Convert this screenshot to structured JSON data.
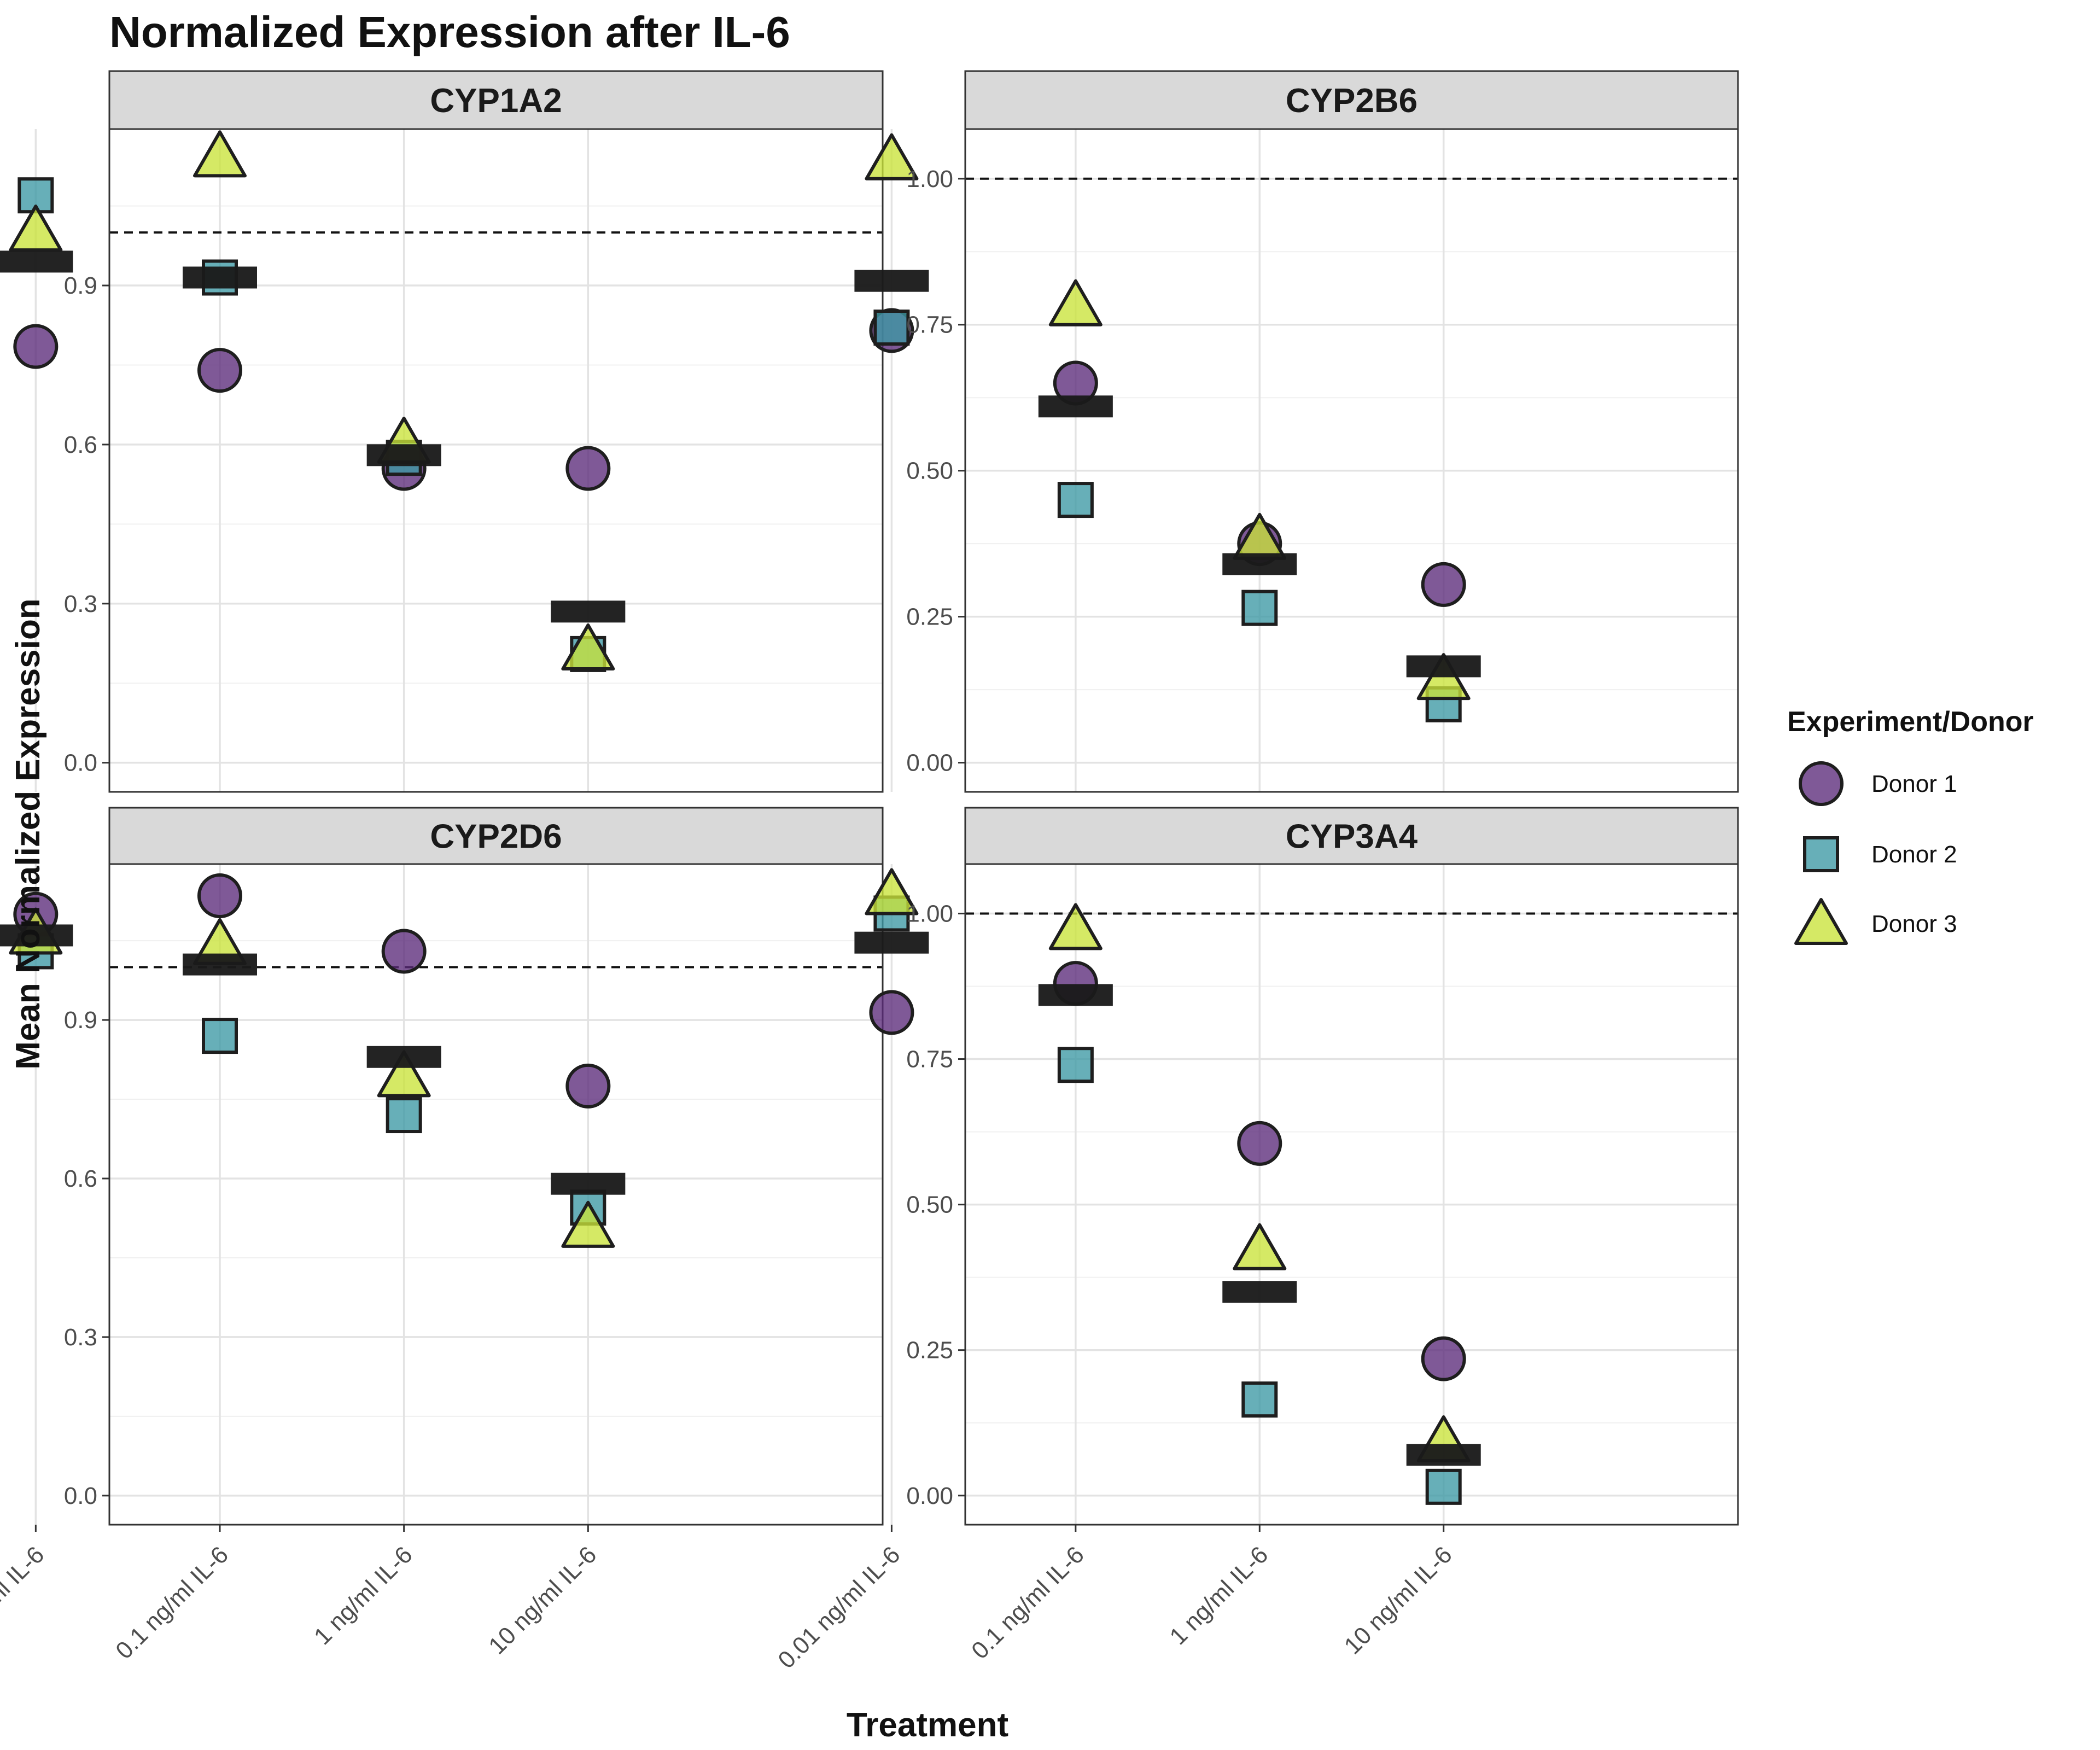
{
  "chart_data": {
    "type": "scatter",
    "title": "Normalized Expression after IL-6",
    "xlabel": "Treatment",
    "ylabel": "Mean Normalized Expression",
    "categories": [
      "0.01 ng/ml IL-6",
      "0.1 ng/ml IL-6",
      "1 ng/ml IL-6",
      "10 ng/ml IL-6"
    ],
    "legend": {
      "title": "Experiment/Donor",
      "position": "right",
      "entries": [
        {
          "name": "Donor 1",
          "shape": "circle",
          "color": "#5B2A7A"
        },
        {
          "name": "Donor 2",
          "shape": "square",
          "color": "#3C98A4"
        },
        {
          "name": "Donor 3",
          "shape": "triangle",
          "color": "#C9E33A"
        }
      ]
    },
    "reference_line": 1.0,
    "mean_color": "#1a1a1a",
    "panels": [
      {
        "name": "CYP1A2",
        "ylim": [
          -0.055,
          1.195
        ],
        "ticks": [
          0.0,
          0.3,
          0.6,
          0.9
        ],
        "tick_labels": [
          "0.0",
          "0.3",
          "0.6",
          "0.9"
        ],
        "minor": [
          0.15,
          0.45,
          0.75,
          1.05
        ],
        "donor1": [
          0.785,
          0.74,
          0.555,
          0.555
        ],
        "donor2": [
          1.07,
          0.915,
          0.575,
          0.205
        ],
        "donor3": [
          1.0,
          1.14,
          0.6,
          0.21
        ],
        "mean": [
          0.945,
          0.915,
          0.58,
          0.285
        ]
      },
      {
        "name": "CYP2B6",
        "ylim": [
          -0.05,
          1.085
        ],
        "ticks": [
          0.0,
          0.25,
          0.5,
          0.75,
          1.0
        ],
        "tick_labels": [
          "0.00",
          "0.25",
          "0.50",
          "0.75",
          "1.00"
        ],
        "minor": [
          0.125,
          0.375,
          0.625,
          0.875
        ],
        "donor1": [
          0.74,
          0.65,
          0.375,
          0.305
        ],
        "donor2": [
          0.745,
          0.45,
          0.265,
          0.1
        ],
        "donor3": [
          1.03,
          0.78,
          0.38,
          0.14
        ],
        "mean": [
          0.825,
          0.61,
          0.34,
          0.165
        ]
      },
      {
        "name": "CYP2D6",
        "ylim": [
          -0.055,
          1.195
        ],
        "ticks": [
          0.0,
          0.3,
          0.6,
          0.9
        ],
        "tick_labels": [
          "0.0",
          "0.3",
          "0.6",
          "0.9"
        ],
        "minor": [
          0.15,
          0.45,
          0.75,
          1.05
        ],
        "donor1": [
          1.1,
          1.135,
          1.03,
          0.775
        ],
        "donor2": [
          1.03,
          0.87,
          0.72,
          0.545
        ],
        "donor3": [
          1.06,
          1.04,
          0.79,
          0.505
        ],
        "mean": [
          1.06,
          1.005,
          0.83,
          0.59
        ]
      },
      {
        "name": "CYP3A4",
        "ylim": [
          -0.05,
          1.085
        ],
        "ticks": [
          0.0,
          0.25,
          0.5,
          0.75,
          1.0
        ],
        "tick_labels": [
          "0.00",
          "0.25",
          "0.50",
          "0.75",
          "1.00"
        ],
        "minor": [
          0.125,
          0.375,
          0.625,
          0.875
        ],
        "donor1": [
          0.83,
          0.88,
          0.605,
          0.235
        ],
        "donor2": [
          1.0,
          0.74,
          0.165,
          0.015
        ],
        "donor3": [
          1.03,
          0.97,
          0.42,
          0.09
        ],
        "mean": [
          0.95,
          0.86,
          0.35,
          0.07
        ]
      }
    ]
  }
}
